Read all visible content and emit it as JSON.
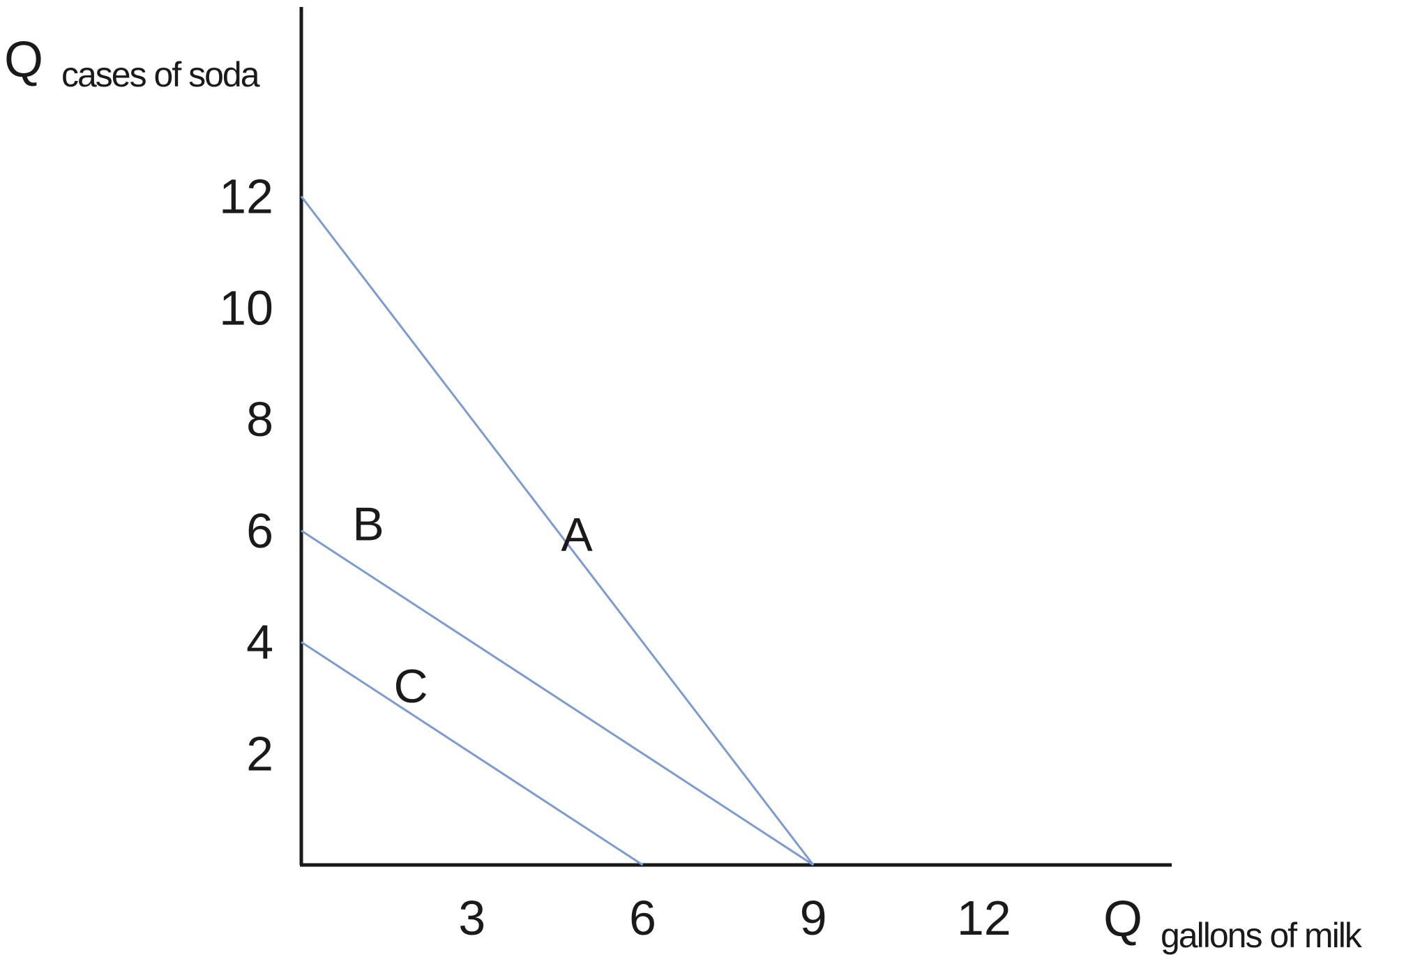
{
  "chart_data": {
    "type": "line",
    "title": "",
    "xlabel": {
      "symbol": "Q",
      "subscript": "gallons of milk"
    },
    "ylabel": {
      "symbol": "Q",
      "subscript": "cases of soda"
    },
    "x_ticks": [
      "3",
      "6",
      "9",
      "12"
    ],
    "y_ticks": [
      "2",
      "4",
      "6",
      "8",
      "10",
      "12"
    ],
    "xlim": [
      0,
      15.3
    ],
    "ylim": [
      0,
      15.4
    ],
    "grid": false,
    "series": [
      {
        "name": "A",
        "x": [
          0,
          9
        ],
        "y": [
          12,
          0
        ]
      },
      {
        "name": "B",
        "x": [
          0,
          9
        ],
        "y": [
          6,
          0
        ]
      },
      {
        "name": "C",
        "x": [
          0,
          6
        ],
        "y": [
          4,
          0
        ]
      }
    ],
    "colors": {
      "lines": "#7b9bd1",
      "axes": "#1a1a1a"
    }
  }
}
